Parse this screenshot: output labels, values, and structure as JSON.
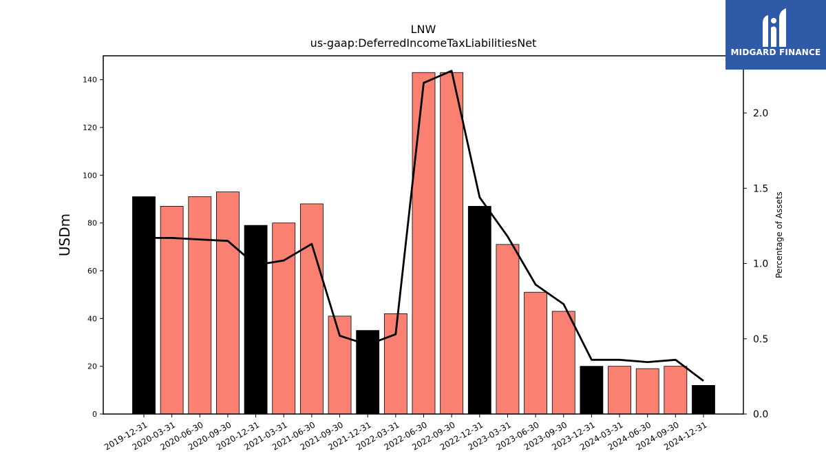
{
  "logo": {
    "text": "MIDGARD FINANCE",
    "icon": "midgard-m-logo-icon"
  },
  "colors": {
    "annual": "#000000",
    "quarterly": "#fa8072",
    "line": "#000000",
    "logo_bg": "#2e5aa8"
  },
  "chart_data": {
    "type": "bar",
    "title": "LNW",
    "subtitle": "us-gaap:DeferredIncomeTaxLiabilitiesNet",
    "ylabel": "USDm",
    "y2label": "Percentage of Assets",
    "ylim": [
      0,
      150
    ],
    "y2lim": [
      0,
      2.38
    ],
    "yticks": [
      0,
      20,
      40,
      60,
      80,
      100,
      120,
      140
    ],
    "y2ticks": [
      "0.0",
      "0.5",
      "1.0",
      "1.5",
      "2.0"
    ],
    "categories": [
      "2019-12-31",
      "2020-03-31",
      "2020-06-30",
      "2020-09-30",
      "2020-12-31",
      "2021-03-31",
      "2021-06-30",
      "2021-09-30",
      "2021-12-31",
      "2022-03-31",
      "2022-06-30",
      "2022-09-30",
      "2022-12-31",
      "2023-03-31",
      "2023-06-30",
      "2023-09-30",
      "2023-12-31",
      "2024-03-31",
      "2024-06-30",
      "2024-09-30",
      "2024-12-31"
    ],
    "series": [
      {
        "type": "bar",
        "values": [
          91,
          87,
          91,
          93,
          79,
          80,
          88,
          41,
          35,
          42,
          143,
          143,
          87,
          71,
          51,
          43,
          20,
          20,
          19,
          20,
          12
        ],
        "annual": [
          true,
          false,
          false,
          false,
          true,
          false,
          false,
          false,
          true,
          false,
          false,
          false,
          true,
          false,
          false,
          false,
          true,
          false,
          false,
          false,
          true
        ]
      },
      {
        "type": "line",
        "axis": "right",
        "values": [
          1.17,
          1.17,
          1.16,
          1.15,
          0.99,
          1.02,
          1.13,
          0.52,
          0.46,
          0.53,
          2.2,
          2.28,
          1.44,
          1.18,
          0.86,
          0.73,
          0.36,
          0.36,
          0.345,
          0.36,
          0.22
        ]
      }
    ],
    "grid": false,
    "legend": "none"
  }
}
